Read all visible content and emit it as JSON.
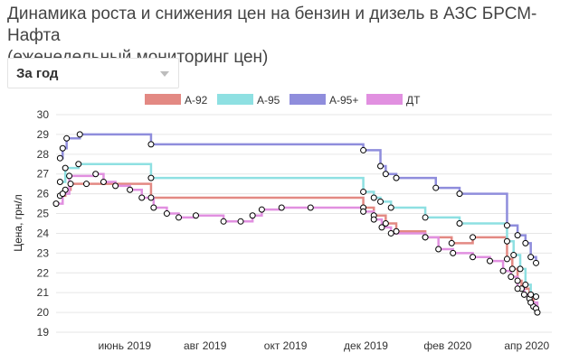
{
  "header": {
    "title_line1": "Динамика роста и снижения цен на бензин и дизель в АЗС БРСМ-Нафта",
    "title_line2": "(еженедельный мониторинг цен)"
  },
  "controls": {
    "period_label": "За год",
    "caret_icon": "chevron-down-icon"
  },
  "chart_data": {
    "type": "line",
    "step": true,
    "ylabel": "Цена, грн/л",
    "ylim": [
      19,
      30
    ],
    "yticks": [
      19,
      20,
      21,
      22,
      23,
      24,
      25,
      26,
      27,
      28,
      29,
      30
    ],
    "xlim": [
      "2019-04-10",
      "2020-04-20"
    ],
    "xticks": [
      {
        "date": "2019-06-01",
        "label": "июнь 2019"
      },
      {
        "date": "2019-08-01",
        "label": "авг 2019"
      },
      {
        "date": "2019-10-01",
        "label": "окт 2019"
      },
      {
        "date": "2019-12-01",
        "label": "дек 2019"
      },
      {
        "date": "2020-02-01",
        "label": "фев 2020"
      },
      {
        "date": "2020-04-01",
        "label": "апр 2020"
      }
    ],
    "grid": true,
    "legend_position": "top",
    "series": [
      {
        "name": "А-92",
        "color": "#e38983",
        "points": [
          [
            "2019-04-13",
            25.9
          ],
          [
            "2019-04-17",
            26.2
          ],
          [
            "2019-04-21",
            26.5
          ],
          [
            "2019-05-03",
            26.5
          ],
          [
            "2019-06-21",
            25.8
          ],
          [
            "2019-11-29",
            25.3
          ],
          [
            "2019-12-07",
            24.9
          ],
          [
            "2019-12-16",
            24.5
          ],
          [
            "2019-12-24",
            24.1
          ],
          [
            "2020-01-15",
            23.8
          ],
          [
            "2020-02-04",
            23.5
          ],
          [
            "2020-02-20",
            23.8
          ],
          [
            "2020-03-17",
            22.7
          ],
          [
            "2020-03-21",
            22.2
          ],
          [
            "2020-03-25",
            21.6
          ],
          [
            "2020-03-28",
            21.2
          ],
          [
            "2020-04-03",
            20.7
          ],
          [
            "2020-04-06",
            20.3
          ],
          [
            "2020-04-08",
            20.2
          ]
        ]
      },
      {
        "name": "А-95",
        "color": "#8ee0e2",
        "points": [
          [
            "2019-04-13",
            26.6
          ],
          [
            "2019-04-17",
            27.3
          ],
          [
            "2019-04-27",
            27.5
          ],
          [
            "2019-06-21",
            26.8
          ],
          [
            "2019-11-29",
            26.1
          ],
          [
            "2019-12-07",
            25.8
          ],
          [
            "2019-12-12",
            25.6
          ],
          [
            "2019-12-20",
            25.3
          ],
          [
            "2020-01-15",
            24.8
          ],
          [
            "2020-02-10",
            24.5
          ],
          [
            "2020-03-17",
            23.6
          ],
          [
            "2020-03-22",
            22.9
          ],
          [
            "2020-03-27",
            22.2
          ],
          [
            "2020-03-31",
            21.4
          ],
          [
            "2020-04-04",
            20.9
          ],
          [
            "2020-04-08",
            20.8
          ]
        ]
      },
      {
        "name": "А-95+",
        "color": "#8f8ddc",
        "points": [
          [
            "2019-04-13",
            27.8
          ],
          [
            "2019-04-15",
            28.3
          ],
          [
            "2019-04-18",
            28.8
          ],
          [
            "2019-04-28",
            29.0
          ],
          [
            "2019-06-21",
            28.5
          ],
          [
            "2019-11-29",
            28.2
          ],
          [
            "2019-12-12",
            27.4
          ],
          [
            "2019-12-16",
            27.0
          ],
          [
            "2019-12-24",
            26.8
          ],
          [
            "2020-01-23",
            26.3
          ],
          [
            "2020-02-10",
            26.0
          ],
          [
            "2020-03-17",
            24.4
          ],
          [
            "2020-03-25",
            23.9
          ],
          [
            "2020-03-31",
            23.5
          ],
          [
            "2020-04-04",
            22.8
          ],
          [
            "2020-04-08",
            22.5
          ]
        ]
      },
      {
        "name": "ДТ",
        "color": "#e190e0",
        "points": [
          [
            "2019-04-10",
            25.5
          ],
          [
            "2019-04-15",
            26.0
          ],
          [
            "2019-04-20",
            26.9
          ],
          [
            "2019-05-10",
            27.0
          ],
          [
            "2019-05-16",
            26.6
          ],
          [
            "2019-05-25",
            26.4
          ],
          [
            "2019-06-05",
            26.2
          ],
          [
            "2019-06-14",
            25.8
          ],
          [
            "2019-06-23",
            25.3
          ],
          [
            "2019-07-03",
            25.0
          ],
          [
            "2019-07-12",
            24.8
          ],
          [
            "2019-07-25",
            24.9
          ],
          [
            "2019-08-15",
            24.6
          ],
          [
            "2019-08-28",
            24.6
          ],
          [
            "2019-09-06",
            24.9
          ],
          [
            "2019-09-13",
            25.2
          ],
          [
            "2019-09-28",
            25.3
          ],
          [
            "2019-10-20",
            25.3
          ],
          [
            "2019-11-29",
            25.1
          ],
          [
            "2019-12-07",
            24.7
          ],
          [
            "2019-12-13",
            24.3
          ],
          [
            "2019-12-20",
            24.0
          ],
          [
            "2020-01-15",
            23.8
          ],
          [
            "2020-01-25",
            23.2
          ],
          [
            "2020-02-05",
            23.0
          ],
          [
            "2020-02-20",
            22.8
          ],
          [
            "2020-03-04",
            22.6
          ],
          [
            "2020-03-14",
            22.1
          ],
          [
            "2020-03-20",
            21.8
          ],
          [
            "2020-03-25",
            21.2
          ],
          [
            "2020-03-30",
            20.9
          ],
          [
            "2020-04-04",
            20.5
          ],
          [
            "2020-04-09",
            20.0
          ]
        ]
      }
    ]
  }
}
